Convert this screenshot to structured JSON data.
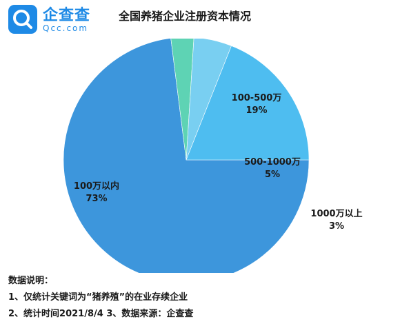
{
  "logo": {
    "name_cn": "企查查",
    "name_en": "Qcc.com",
    "icon": "magnifier-q-icon",
    "color": "#1e8ae6"
  },
  "title": "全国养猪企业注册资本情况",
  "chart_data": {
    "type": "pie",
    "title": "全国养猪企业注册资本情况",
    "start_angle_deg": 0,
    "direction": "clockwise",
    "slices": [
      {
        "label": "100万以内",
        "percent_label": "73%",
        "value": 73,
        "color": "#3d96dc"
      },
      {
        "label": "1000万以上",
        "percent_label": "3%",
        "value": 3,
        "color": "#5ed3b4"
      },
      {
        "label": "500-1000万",
        "percent_label": "5%",
        "value": 5,
        "color": "#79cff1"
      },
      {
        "label": "100-500万",
        "percent_label": "19%",
        "value": 19,
        "color": "#4ebdf0"
      }
    ],
    "legend": "none"
  },
  "notes": {
    "heading": "数据说明：",
    "line1": "1、仅统计关键词为“猪养殖”的在业存续企业",
    "line2": "2、统计时间2021/8/4   3、数据来源：企查查"
  }
}
